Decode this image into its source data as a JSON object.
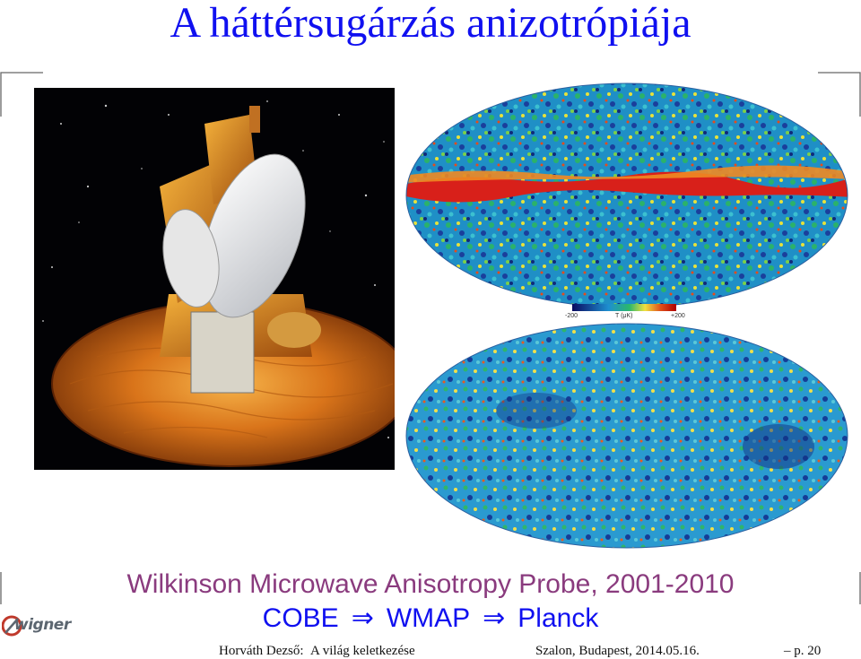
{
  "slide": {
    "title": "A háttérsugárzás anizotrópiája",
    "caption": "Wilkinson Microwave Anisotropy Probe, 2001-2010",
    "sequence": [
      "COBE",
      "WMAP",
      "Planck"
    ],
    "arrow_symbol": "⇒",
    "logo_text": "wigner"
  },
  "map_scale": {
    "min_label": "-200",
    "unit_label": "T (μK)",
    "max_label": "+200"
  },
  "footer": {
    "author": "Horváth Dezső:",
    "talk": "A világ keletkezése",
    "venue": "Szalon, Budapest, 2014.05.16.",
    "page": "– p. 20"
  },
  "colors": {
    "title": "#1010f0",
    "caption": "#8a3b7e",
    "sequence": "#1010f0"
  },
  "icons": [
    "corner-mark-icon",
    "arrow-right-icon",
    "wigner-logo-icon"
  ]
}
